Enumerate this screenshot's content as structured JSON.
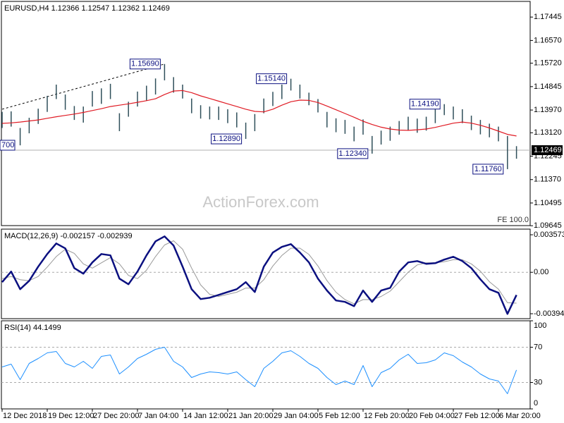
{
  "chart_data": [
    {
      "type": "ohlc",
      "title": "EURUSD,H4 1.12366 1.12547 1.12362 1.12469",
      "categories": [
        "12 Dec 2018",
        null,
        null,
        null,
        null,
        "19 Dec 12:00",
        null,
        null,
        null,
        null,
        "27 Dec 20:00",
        null,
        null,
        null,
        null,
        "7 Jan 04:00",
        null,
        null,
        null,
        null,
        "14 Jan 12:00",
        null,
        null,
        null,
        null,
        "21 Jan 20:00",
        null,
        null,
        null,
        null,
        "29 Jan 04:00",
        null,
        null,
        null,
        null,
        "5 Feb 12:00",
        null,
        null,
        null,
        null,
        "12 Feb 20:00",
        null,
        null,
        null,
        null,
        "20 Feb 04:00",
        null,
        null,
        null,
        null,
        "27 Feb 12:00",
        null,
        null,
        null,
        null,
        "6 Mar 20:00",
        null,
        null
      ],
      "high": [
        1.139,
        1.1392,
        1.133,
        1.1368,
        1.1402,
        1.145,
        1.1492,
        1.1455,
        1.1412,
        1.141,
        1.1468,
        1.1478,
        1.1495,
        1.1385,
        1.1428,
        1.1466,
        1.1488,
        1.1515,
        1.1569,
        1.152,
        1.1492,
        1.144,
        1.1415,
        1.141,
        1.141,
        1.14,
        1.1388,
        1.135,
        1.1382,
        1.144,
        1.1465,
        1.1492,
        1.1514,
        1.1492,
        1.1462,
        1.1438,
        1.139,
        1.1366,
        1.136,
        1.1335,
        1.1362,
        1.13,
        1.132,
        1.1335,
        1.1356,
        1.1372,
        1.1365,
        1.1372,
        1.14,
        1.1419,
        1.141,
        1.14,
        1.1376,
        1.136,
        1.1346,
        1.1335,
        1.13,
        1.1262
      ],
      "low": [
        1.133,
        1.1335,
        1.1265,
        1.131,
        1.1345,
        1.139,
        1.1438,
        1.1398,
        1.136,
        1.135,
        1.141,
        1.142,
        1.1438,
        1.1318,
        1.1372,
        1.141,
        1.1432,
        1.1455,
        1.1508,
        1.1462,
        1.144,
        1.1385,
        1.1365,
        1.1362,
        1.136,
        1.1348,
        1.1332,
        1.1289,
        1.1318,
        1.1385,
        1.1412,
        1.1438,
        1.147,
        1.144,
        1.1415,
        1.1388,
        1.1332,
        1.1314,
        1.1308,
        1.128,
        1.1305,
        1.1234,
        1.1268,
        1.1282,
        1.1305,
        1.132,
        1.1312,
        1.132,
        1.1348,
        1.1378,
        1.1362,
        1.1348,
        1.1322,
        1.1306,
        1.1295,
        1.128,
        1.1176,
        1.1215
      ],
      "bar_color": "#2f4f5a",
      "ma": {
        "color": "#e01b24",
        "values": [
          1.1347,
          1.1349,
          1.1352,
          1.1356,
          1.136,
          1.1366,
          1.1372,
          1.1377,
          1.1382,
          1.1388,
          1.1395,
          1.1402,
          1.141,
          1.1415,
          1.142,
          1.1426,
          1.1432,
          1.1439,
          1.1455,
          1.1468,
          1.147,
          1.1462,
          1.145,
          1.144,
          1.143,
          1.142,
          1.141,
          1.14,
          1.1392,
          1.139,
          1.14,
          1.1415,
          1.1428,
          1.1434,
          1.1433,
          1.1425,
          1.1412,
          1.1398,
          1.1384,
          1.137,
          1.1355,
          1.1343,
          1.1333,
          1.1326,
          1.1322,
          1.1321,
          1.1323,
          1.1326,
          1.1332,
          1.134,
          1.1348,
          1.1352,
          1.1348,
          1.134,
          1.133,
          1.1318,
          1.1306,
          1.13
        ]
      },
      "ylim": [
        1.0965,
        1.1803
      ],
      "yticks": [
        1.17445,
        {
          "value": 1.1657,
          "label": "1.16570"
        },
        {
          "value": 1.1572,
          "label": "1.15720"
        },
        1.14845,
        {
          "value": 1.1397,
          "label": "1.13970"
        },
        {
          "value": 1.1312,
          "label": "1.13120"
        },
        1.12245,
        {
          "value": 1.1137,
          "label": "1.11370"
        },
        1.10495,
        1.09645
      ],
      "last_price": 1.12469,
      "annotations": [
        {
          "label": "1.15690",
          "value": 1.1569,
          "index": 18
        },
        {
          "label": "1.15140",
          "value": 1.1514,
          "index": 32
        },
        {
          "label": "1.12890",
          "value": 1.1289,
          "index": 27
        },
        {
          "label": "1.12340",
          "value": 1.1234,
          "index": 41
        },
        {
          "label": "1.14190",
          "value": 1.1419,
          "index": 49
        },
        {
          "label": "1.11760",
          "value": 1.1176,
          "index": 56
        }
      ],
      "clipped_label": "700",
      "trendline": {
        "start": {
          "index": 0,
          "value": 1.14
        },
        "end": {
          "index": 18,
          "value": 1.1569
        }
      },
      "fe_label": "FE 100.0",
      "watermark": "ActionForex.com"
    },
    {
      "type": "macd",
      "title": "MACD(12,26,9) -0.002157 -0.002939",
      "macd": {
        "color": "#0b1080",
        "values": [
          -0.00094,
          7e-05,
          -0.00161,
          -0.00081,
          0.00054,
          0.00174,
          0.00275,
          0.00228,
          0.0004,
          -0.00013,
          0.00094,
          0.00174,
          0.00161,
          -0.0006,
          -0.00114,
          7e-05,
          0.00161,
          0.00295,
          0.00342,
          0.00255,
          0.00054,
          -0.00161,
          -0.00255,
          -0.00242,
          -0.00215,
          -0.00188,
          -0.00161,
          -0.00094,
          -0.00188,
          0.00054,
          0.00188,
          0.00242,
          0.00268,
          0.00188,
          0.00094,
          -0.0006,
          -0.00174,
          -0.00268,
          -0.00282,
          -0.00322,
          -0.00174,
          -0.00282,
          -0.00174,
          -0.00148,
          7e-05,
          0.00094,
          0.00107,
          0.00081,
          0.00087,
          0.00121,
          0.00148,
          0.00107,
          0.0004,
          -0.00067,
          -0.00161,
          -0.00195,
          -0.00396,
          -0.002157
        ]
      },
      "signal": {
        "color": "#999999",
        "values": [
          -0.0006,
          -0.0004,
          -0.0007,
          -0.0008,
          -0.0004,
          0.0005,
          0.0015,
          0.0022,
          0.0018,
          0.0008,
          0.0004,
          0.0009,
          0.0014,
          0.0008,
          -0.0003,
          -0.0006,
          0.0002,
          0.0015,
          0.0026,
          0.003,
          0.0022,
          0.0004,
          -0.0012,
          -0.0021,
          -0.0023,
          -0.0021,
          -0.0019,
          -0.0015,
          -0.0015,
          -0.0007,
          0.0006,
          0.0016,
          0.0023,
          0.0023,
          0.0017,
          0.0006,
          -0.0008,
          -0.0019,
          -0.0026,
          -0.003,
          -0.0026,
          -0.0026,
          -0.0023,
          -0.0018,
          -0.0009,
          0.0,
          0.0007,
          0.0009,
          0.0009,
          0.001,
          0.0012,
          0.0012,
          0.0008,
          0.0001,
          -0.0009,
          -0.0016,
          -0.0029,
          -0.002939
        ]
      },
      "ylim": [
        -0.004415,
        0.00411
      ],
      "yticks": [
        0.003573,
        {
          "value": 0,
          "label": "0.00"
        },
        -0.003945
      ],
      "levels": [
        0
      ]
    },
    {
      "type": "line",
      "title": "RSI(14) 44.1499",
      "color": "#1e90ff",
      "values": [
        47.6,
        50.8,
        33.2,
        51.6,
        57.2,
        63.6,
        65.2,
        51.6,
        47.6,
        54.0,
        46.0,
        59.6,
        61.2,
        39.6,
        47.6,
        57.2,
        62.0,
        67.6,
        70.0,
        54.0,
        47.6,
        35.6,
        39.6,
        42.0,
        41.2,
        39.6,
        42.0,
        33.2,
        25.2,
        46.0,
        54.0,
        63.6,
        66.0,
        59.6,
        51.6,
        46.0,
        35.6,
        27.6,
        31.6,
        27.6,
        49.2,
        25.2,
        41.2,
        46.0,
        55.6,
        62.0,
        51.6,
        52.4,
        55.6,
        63.6,
        60.4,
        53.2,
        47.6,
        39.6,
        34.0,
        31.6,
        17.2,
        44.1499
      ],
      "ylim": [
        0,
        100
      ],
      "yticks": [
        100,
        70,
        30,
        0
      ],
      "levels": [
        70,
        30
      ]
    }
  ]
}
